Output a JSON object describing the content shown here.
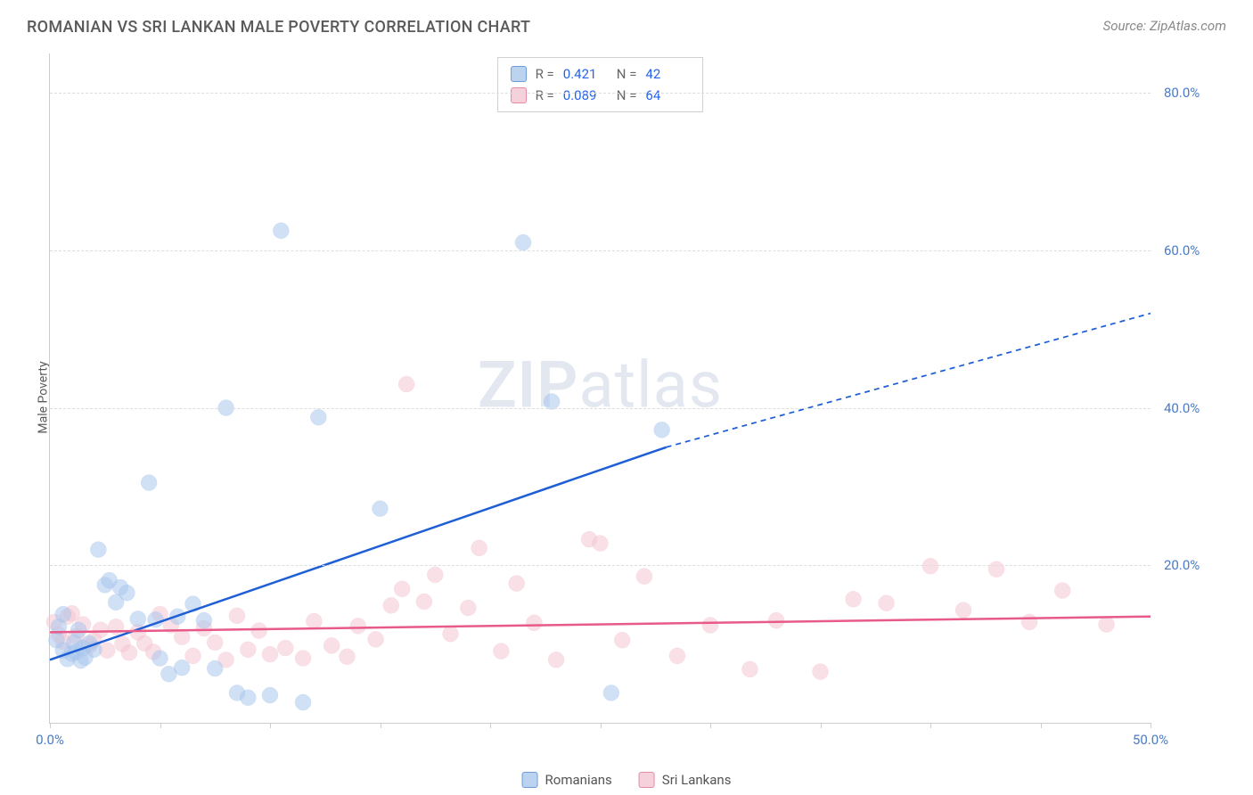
{
  "title": "ROMANIAN VS SRI LANKAN MALE POVERTY CORRELATION CHART",
  "source": "Source: ZipAtlas.com",
  "y_axis_label": "Male Poverty",
  "watermark_bold": "ZIP",
  "watermark_light": "atlas",
  "chart": {
    "type": "scatter",
    "xlim": [
      0,
      50
    ],
    "ylim": [
      0,
      85
    ],
    "x_ticks": [
      0,
      5,
      10,
      15,
      20,
      25,
      30,
      35,
      40,
      45,
      50
    ],
    "x_tick_labels_shown": {
      "0": "0.0%",
      "50": "50.0%"
    },
    "y_ticks": [
      20,
      40,
      60,
      80
    ],
    "y_tick_labels": [
      "20.0%",
      "40.0%",
      "60.0%",
      "80.0%"
    ],
    "background_color": "#ffffff",
    "grid_color": "#dddddd",
    "axis_color": "#cccccc",
    "marker_radius": 9,
    "marker_stroke_width": 1.2,
    "trend_line_width": 2.5,
    "trend_dash": "6,5"
  },
  "series": [
    {
      "name": "Romanians",
      "fill_color": "#a9c6ec",
      "stroke_color": "#6d9cd6",
      "swatch_fill": "#bcd3ef",
      "swatch_stroke": "#6d9cd6",
      "trend_color": "#1e5fd6",
      "r_value": "0.421",
      "n_value": "42",
      "trend": {
        "x1": 0,
        "y1": 8,
        "x2_solid": 28,
        "y2_solid": 35,
        "x2": 50,
        "y2": 52
      },
      "points": [
        [
          0.3,
          10.5
        ],
        [
          0.4,
          12.2
        ],
        [
          0.6,
          13.8
        ],
        [
          0.6,
          9.2
        ],
        [
          0.8,
          8.1
        ],
        [
          1.0,
          8.8
        ],
        [
          1.1,
          10.2
        ],
        [
          1.2,
          9.0
        ],
        [
          1.3,
          11.8
        ],
        [
          1.4,
          7.9
        ],
        [
          1.5,
          9.5
        ],
        [
          1.6,
          8.3
        ],
        [
          1.8,
          10.1
        ],
        [
          2.0,
          9.3
        ],
        [
          2.2,
          22.0
        ],
        [
          2.5,
          17.5
        ],
        [
          2.7,
          18.1
        ],
        [
          3.0,
          15.3
        ],
        [
          3.2,
          17.2
        ],
        [
          3.5,
          16.5
        ],
        [
          4.0,
          13.2
        ],
        [
          4.5,
          30.5
        ],
        [
          4.8,
          13.1
        ],
        [
          5.0,
          8.2
        ],
        [
          5.4,
          6.2
        ],
        [
          5.8,
          13.5
        ],
        [
          6.0,
          7.0
        ],
        [
          6.5,
          15.1
        ],
        [
          7.0,
          13.0
        ],
        [
          7.5,
          6.9
        ],
        [
          8.0,
          40.0
        ],
        [
          8.5,
          3.8
        ],
        [
          9.0,
          3.2
        ],
        [
          10.0,
          3.5
        ],
        [
          10.5,
          62.5
        ],
        [
          11.5,
          2.6
        ],
        [
          12.2,
          38.8
        ],
        [
          15.0,
          27.2
        ],
        [
          21.5,
          61.0
        ],
        [
          22.8,
          40.8
        ],
        [
          25.5,
          3.8
        ],
        [
          27.8,
          37.2
        ]
      ]
    },
    {
      "name": "Sri Lankans",
      "fill_color": "#f4c6d3",
      "stroke_color": "#e38aa4",
      "swatch_fill": "#f6d0db",
      "swatch_stroke": "#e38aa4",
      "trend_color": "#e75a8a",
      "r_value": "0.089",
      "n_value": "64",
      "trend": {
        "x1": 0,
        "y1": 11.5,
        "x2_solid": 50,
        "y2_solid": 13.5,
        "x2": 50,
        "y2": 13.5
      },
      "points": [
        [
          0.2,
          12.8
        ],
        [
          0.4,
          11.2
        ],
        [
          0.6,
          10.3
        ],
        [
          0.8,
          13.5
        ],
        [
          1.0,
          13.9
        ],
        [
          1.2,
          11.0
        ],
        [
          1.5,
          12.5
        ],
        [
          1.8,
          9.8
        ],
        [
          2.0,
          10.5
        ],
        [
          2.3,
          11.8
        ],
        [
          2.6,
          9.2
        ],
        [
          3.0,
          12.2
        ],
        [
          3.3,
          10.0
        ],
        [
          3.6,
          8.9
        ],
        [
          4.0,
          11.5
        ],
        [
          4.3,
          10.1
        ],
        [
          4.7,
          9.0
        ],
        [
          5.0,
          13.8
        ],
        [
          5.5,
          12.4
        ],
        [
          6.0,
          10.9
        ],
        [
          6.5,
          8.5
        ],
        [
          7.0,
          12.0
        ],
        [
          7.5,
          10.2
        ],
        [
          8.0,
          8.0
        ],
        [
          8.5,
          13.6
        ],
        [
          9.0,
          9.3
        ],
        [
          9.5,
          11.7
        ],
        [
          10.0,
          8.7
        ],
        [
          10.7,
          9.5
        ],
        [
          11.5,
          8.2
        ],
        [
          12.0,
          12.9
        ],
        [
          12.8,
          9.8
        ],
        [
          13.5,
          8.4
        ],
        [
          14.0,
          12.3
        ],
        [
          14.8,
          10.6
        ],
        [
          15.5,
          14.9
        ],
        [
          16.0,
          17.0
        ],
        [
          16.2,
          43.0
        ],
        [
          17.0,
          15.4
        ],
        [
          17.5,
          18.8
        ],
        [
          18.2,
          11.3
        ],
        [
          19.0,
          14.6
        ],
        [
          19.5,
          22.2
        ],
        [
          20.5,
          9.1
        ],
        [
          21.2,
          17.7
        ],
        [
          22.0,
          12.7
        ],
        [
          23.0,
          8.0
        ],
        [
          24.5,
          23.3
        ],
        [
          25.0,
          22.8
        ],
        [
          26.0,
          10.5
        ],
        [
          27.0,
          18.6
        ],
        [
          28.5,
          8.5
        ],
        [
          30.0,
          12.4
        ],
        [
          31.8,
          6.8
        ],
        [
          33.0,
          13.0
        ],
        [
          35.0,
          6.5
        ],
        [
          36.5,
          15.7
        ],
        [
          38.0,
          15.2
        ],
        [
          40.0,
          19.9
        ],
        [
          41.5,
          14.3
        ],
        [
          43.0,
          19.5
        ],
        [
          44.5,
          12.8
        ],
        [
          46.0,
          16.8
        ],
        [
          48.0,
          12.5
        ]
      ]
    }
  ],
  "legend_labels": {
    "r": "R =",
    "n": "N ="
  }
}
